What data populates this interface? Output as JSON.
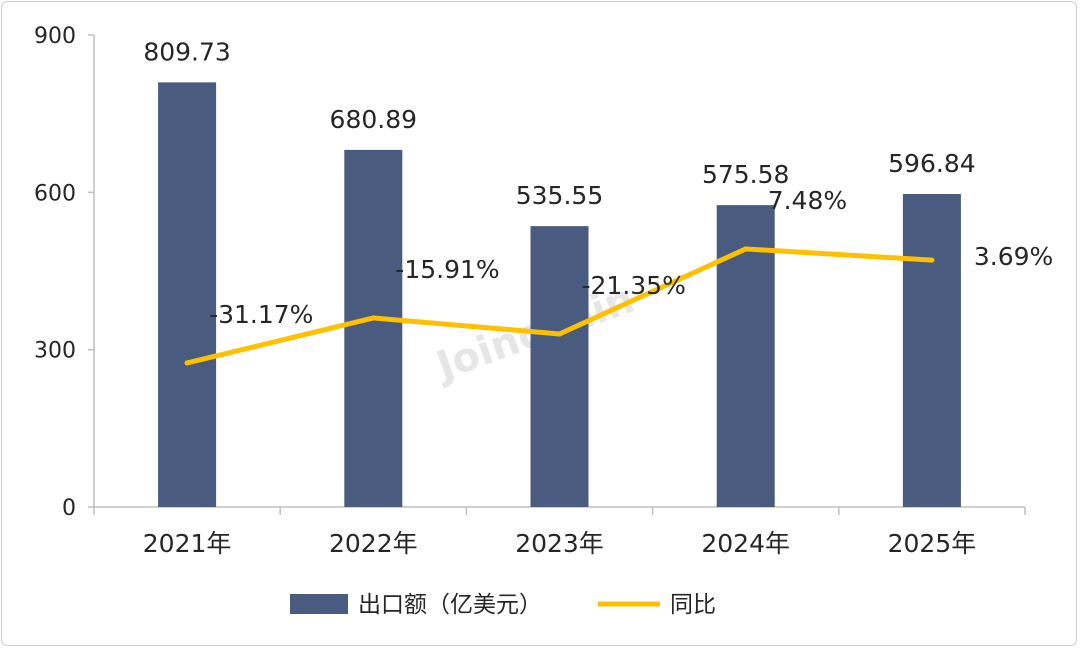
{
  "chart_data": {
    "type": "bar",
    "categories": [
      "2021年",
      "2022年",
      "2023年",
      "2024年",
      "2025年"
    ],
    "series": [
      {
        "name": "出口额（亿美元）",
        "type": "bar",
        "values": [
          809.73,
          680.89,
          535.55,
          575.58,
          596.84
        ],
        "labels": [
          "809.73",
          "680.89",
          "535.55",
          "575.58",
          "596.84"
        ]
      },
      {
        "name": "同比",
        "type": "line",
        "values": [
          -31.17,
          -15.91,
          -21.35,
          7.48,
          3.69
        ],
        "labels": [
          "-31.17%",
          "-15.91%",
          "-21.35%",
          "7.48%",
          "3.69%"
        ]
      }
    ],
    "ylim": [
      0,
      900
    ],
    "yticks": [
      "0",
      "300",
      "600",
      "900"
    ],
    "secondary_ylim": [
      -80,
      80
    ],
    "legend_position": "bottom",
    "grid": false
  },
  "watermark": "Joinchain",
  "colors": {
    "bar": "#4a5b80",
    "line": "#ffc000",
    "axis": "#bfbfbf",
    "text": "#262626"
  }
}
